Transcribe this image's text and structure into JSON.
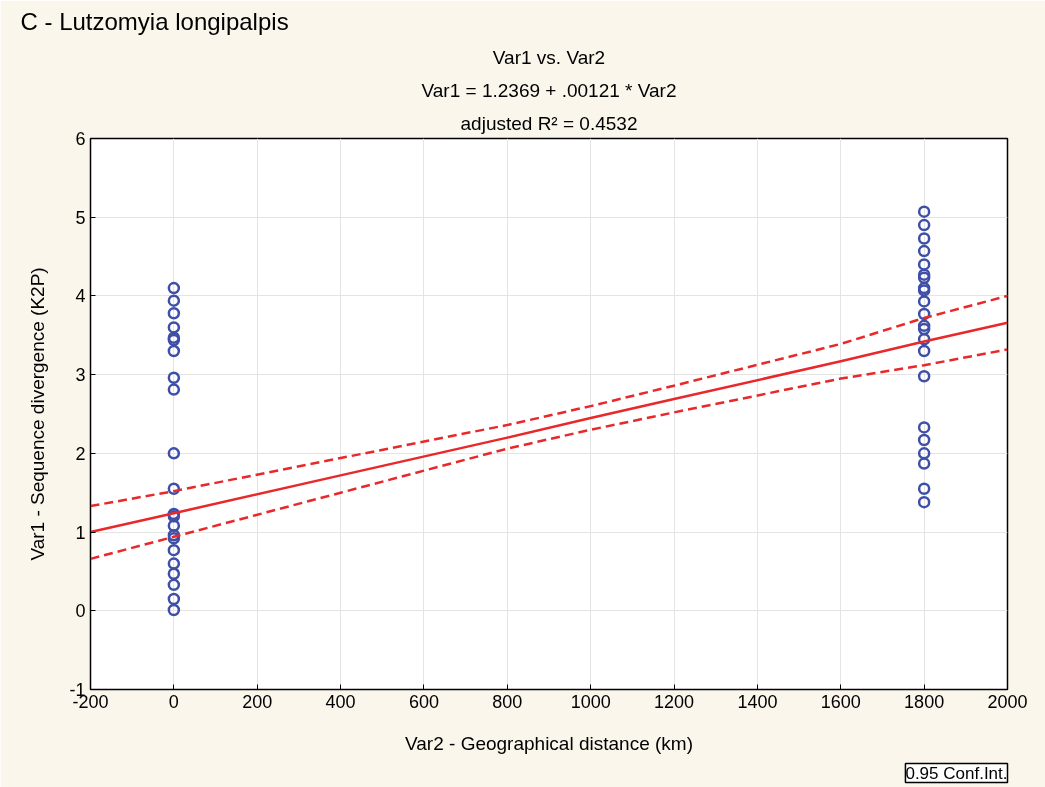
{
  "chart_data": {
    "type": "scatter",
    "title": "C - Lutzomyia longipalpis",
    "subtitle": "Var1 vs. Var2",
    "xlabel": "Var2 - Geographical distance (km)",
    "ylabel": "Var1 - Sequence divergence (K2P)",
    "annotations": [
      "Var1 = 1.2369 + .00121 * Var2",
      "adjusted R² = 0.4532",
      "0.95 Conf.Int."
    ],
    "xlim": [
      -200,
      2000
    ],
    "ylim": [
      -1,
      6
    ],
    "xticks": [
      -200,
      0,
      200,
      400,
      600,
      800,
      1000,
      1200,
      1400,
      1600,
      1800,
      2000
    ],
    "yticks": [
      -1,
      0,
      1,
      2,
      3,
      4,
      5,
      6
    ],
    "grid": true,
    "series": [
      {
        "marker": "circle",
        "color": "#3f4fa8",
        "x": [
          0,
          0,
          0,
          0,
          0,
          0,
          0,
          0,
          0,
          0,
          0,
          0,
          0,
          0,
          0,
          0,
          0,
          0,
          0,
          0,
          0,
          0,
          1800,
          1800,
          1800,
          1800,
          1800,
          1800,
          1800,
          1800,
          1800,
          1800,
          1800,
          1800,
          1800,
          1800,
          1800,
          1800,
          1800,
          1800,
          1800,
          1800,
          1800,
          1800
        ],
        "values": [
          4.1,
          3.94,
          3.78,
          3.6,
          3.47,
          3.44,
          3.3,
          2.96,
          2.81,
          2.0,
          1.55,
          1.23,
          1.2,
          1.08,
          0.96,
          0.92,
          0.77,
          0.6,
          0.47,
          0.33,
          0.15,
          0.01,
          5.07,
          4.9,
          4.73,
          4.57,
          4.4,
          4.27,
          4.23,
          4.1,
          4.07,
          3.93,
          3.77,
          3.62,
          3.58,
          3.45,
          3.3,
          2.98,
          2.33,
          2.17,
          2.0,
          1.87,
          1.55,
          1.38
        ]
      },
      {
        "type": "line",
        "line_style": "solid",
        "color": "#e8282a",
        "x": [
          -200,
          0,
          400,
          800,
          1000,
          1200,
          1600,
          1800,
          2000
        ],
        "values": [
          1.0,
          1.24,
          1.72,
          2.2,
          2.45,
          2.69,
          3.17,
          3.42,
          3.66
        ]
      },
      {
        "type": "line",
        "line_style": "dashed",
        "color": "#e8282a",
        "x": [
          -200,
          0,
          400,
          800,
          1000,
          1200,
          1600,
          1800,
          2000
        ],
        "values": [
          1.33,
          1.52,
          1.94,
          2.36,
          2.6,
          2.86,
          3.39,
          3.72,
          4.0
        ]
      },
      {
        "type": "line",
        "line_style": "dashed",
        "color": "#e8282a",
        "x": [
          -200,
          0,
          400,
          800,
          1000,
          1200,
          1600,
          1800,
          2000
        ],
        "values": [
          0.66,
          0.94,
          1.5,
          2.06,
          2.3,
          2.52,
          2.95,
          3.12,
          3.32
        ]
      }
    ]
  }
}
